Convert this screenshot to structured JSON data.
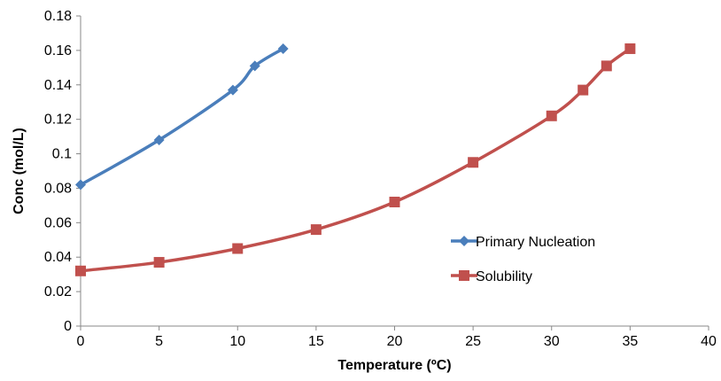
{
  "chart_data": {
    "type": "line",
    "title": "",
    "xlabel": "Temperature (ºC)",
    "ylabel": "Conc (mol/L)",
    "xlim": [
      0,
      40
    ],
    "ylim": [
      0,
      0.18
    ],
    "xticks": [
      0,
      5,
      10,
      15,
      20,
      25,
      30,
      35,
      40
    ],
    "yticks": [
      0,
      0.02,
      0.04,
      0.06,
      0.08,
      0.1,
      0.12,
      0.14,
      0.16,
      0.18
    ],
    "grid": false,
    "legend_position": "right",
    "series": [
      {
        "name": "Primary Nucleation",
        "color": "#4a7ebb",
        "marker": "diamond",
        "points": [
          [
            0,
            0.082
          ],
          [
            5,
            0.108
          ],
          [
            9.7,
            0.137
          ],
          [
            11.1,
            0.151
          ],
          [
            12.9,
            0.161
          ]
        ]
      },
      {
        "name": "Solubility",
        "color": "#c0504d",
        "marker": "square",
        "points": [
          [
            0,
            0.032
          ],
          [
            5,
            0.037
          ],
          [
            10,
            0.045
          ],
          [
            15,
            0.056
          ],
          [
            20,
            0.072
          ],
          [
            25,
            0.095
          ],
          [
            30,
            0.122
          ],
          [
            32,
            0.137
          ],
          [
            33.5,
            0.151
          ],
          [
            35,
            0.161
          ]
        ]
      }
    ]
  }
}
